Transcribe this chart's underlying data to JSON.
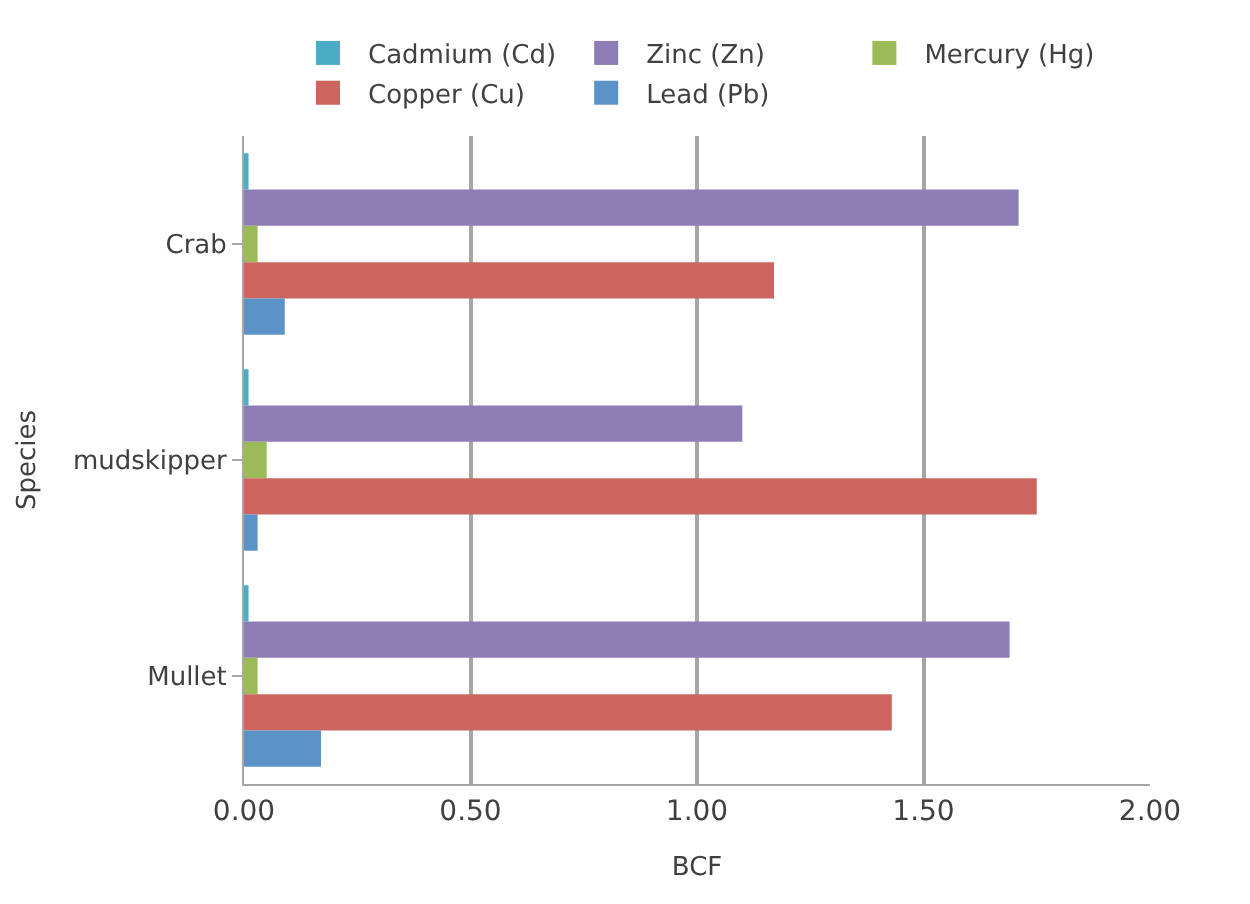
{
  "chart_data": {
    "type": "bar",
    "orientation": "horizontal",
    "xlabel": "BCF",
    "ylabel": "Species",
    "categories": [
      "Crab",
      "mudskipper",
      "Mullet"
    ],
    "series": [
      {
        "name": "Cadmium (Cd)",
        "color": "#4bacc6",
        "values": [
          0.01,
          0.01,
          0.01
        ]
      },
      {
        "name": "Zinc (Zn)",
        "color": "#8e7cb5",
        "values": [
          1.71,
          1.1,
          1.69
        ]
      },
      {
        "name": "Mercury (Hg)",
        "color": "#9bbb59",
        "values": [
          0.03,
          0.05,
          0.03
        ]
      },
      {
        "name": "Copper (Cu)",
        "color": "#cc6560",
        "values": [
          1.17,
          1.75,
          1.43
        ]
      },
      {
        "name": "Lead (Pb)",
        "color": "#5b93c8",
        "values": [
          0.09,
          0.03,
          0.17
        ]
      }
    ],
    "xlim": [
      0,
      2
    ],
    "xticks": [
      {
        "value": 0,
        "label": "0.00"
      },
      {
        "value": 0.5,
        "label": "0.50"
      },
      {
        "value": 1,
        "label": "1.00"
      },
      {
        "value": 1.5,
        "label": "1.50"
      },
      {
        "value": 2,
        "label": "2.00"
      }
    ],
    "grid": "x",
    "legend": "top"
  }
}
